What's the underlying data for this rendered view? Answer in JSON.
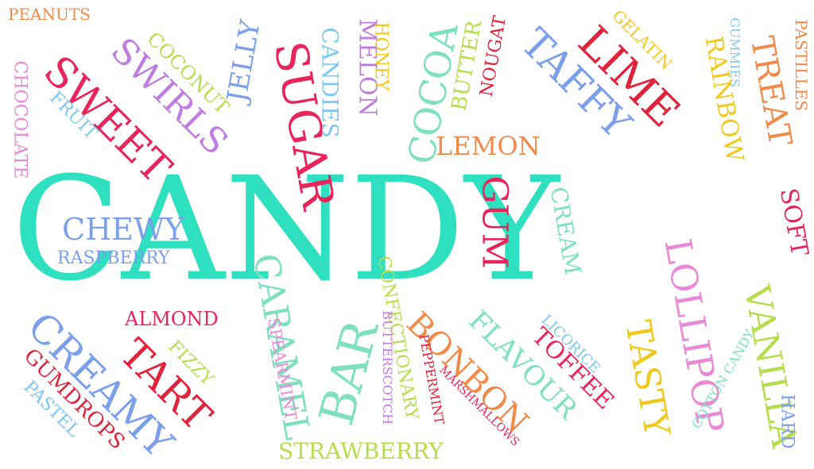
{
  "words": [
    {
      "text": "CANDY",
      "color": "#2ee0c0",
      "rotate": 0
    },
    {
      "text": "PEANUTS",
      "color": "#f08a4b",
      "rotate": 0
    },
    {
      "text": "CHOCOLATE",
      "color": "#e78ad6",
      "rotate": 90
    },
    {
      "text": "SWEET",
      "color": "#e8245c",
      "rotate": 45
    },
    {
      "text": "SWIRLS",
      "color": "#c07de0",
      "rotate": 45
    },
    {
      "text": "FRUIT",
      "color": "#7ec8ef",
      "rotate": 45
    },
    {
      "text": "COCONUT",
      "color": "#b6dd4d",
      "rotate": 45
    },
    {
      "text": "JELLY",
      "color": "#7b9fe8",
      "rotate": -80
    },
    {
      "text": "SUGAR",
      "color": "#e8245c",
      "rotate": 80
    },
    {
      "text": "CANDIES",
      "color": "#7ec8ef",
      "rotate": 90
    },
    {
      "text": "MELON",
      "color": "#c07de0",
      "rotate": 90
    },
    {
      "text": "HONEY",
      "color": "#f0c91e",
      "rotate": 90
    },
    {
      "text": "COCOA",
      "color": "#7fe0c0",
      "rotate": -80
    },
    {
      "text": "BUTTER",
      "color": "#b6dd4d",
      "rotate": -80
    },
    {
      "text": "NOUGAT",
      "color": "#e0223a",
      "rotate": -80
    },
    {
      "text": "TAFFY",
      "color": "#7b9fe8",
      "rotate": 45
    },
    {
      "text": "LIME",
      "color": "#e0223a",
      "rotate": 45
    },
    {
      "text": "GELATIN",
      "color": "#f0c91e",
      "rotate": 45
    },
    {
      "text": "RAINBOW",
      "color": "#f0c91e",
      "rotate": 80
    },
    {
      "text": "GUMMIES",
      "color": "#7ec8ef",
      "rotate": 90
    },
    {
      "text": "TREAT",
      "color": "#f08a4b",
      "rotate": 80
    },
    {
      "text": "PASTILLES",
      "color": "#f08a4b",
      "rotate": 90
    },
    {
      "text": "LEMON",
      "color": "#f08a4b",
      "rotate": 0
    },
    {
      "text": "GUM",
      "color": "#e8245c",
      "rotate": 90
    },
    {
      "text": "CREAM",
      "color": "#7fe0c0",
      "rotate": 80
    },
    {
      "text": "SOFT",
      "color": "#e8245c",
      "rotate": 80
    },
    {
      "text": "CHEWY",
      "color": "#7b9fe8",
      "rotate": 0
    },
    {
      "text": "RASPBERRY",
      "color": "#7b9fe8",
      "rotate": 0
    },
    {
      "text": "ALMOND",
      "color": "#e8245c",
      "rotate": 0
    },
    {
      "text": "LOLLIPOP",
      "color": "#e88ad6",
      "rotate": 80
    },
    {
      "text": "CARAMEL",
      "color": "#7fe0c0",
      "rotate": 80
    },
    {
      "text": "CONFECTIONARY",
      "color": "#b6dd4d",
      "rotate": 80
    },
    {
      "text": "BUTTERSCOTCH",
      "color": "#c07de0",
      "rotate": 90
    },
    {
      "text": "CREAMY",
      "color": "#7b9fe8",
      "rotate": 45
    },
    {
      "text": "TART",
      "color": "#e0223a",
      "rotate": 45
    },
    {
      "text": "FIZZY",
      "color": "#b6dd4d",
      "rotate": 45
    },
    {
      "text": "SPEARMINT",
      "color": "#e88ad6",
      "rotate": 80
    },
    {
      "text": "BAR",
      "color": "#7fe0c0",
      "rotate": -75
    },
    {
      "text": "BONBON",
      "color": "#f08a4b",
      "rotate": 45
    },
    {
      "text": "FLAVOUR",
      "color": "#7fe0c0",
      "rotate": 45
    },
    {
      "text": "PEPPERMINT",
      "color": "#e0223a",
      "rotate": 80
    },
    {
      "text": "MARSHMALLOWS",
      "color": "#e8245c",
      "rotate": 45
    },
    {
      "text": "LICORICE",
      "color": "#7ec8ef",
      "rotate": 45
    },
    {
      "text": "TOFFEE",
      "color": "#e8245c",
      "rotate": 45
    },
    {
      "text": "TASTY",
      "color": "#f0c91e",
      "rotate": 80
    },
    {
      "text": "VANILLA",
      "color": "#b6dd4d",
      "rotate": 80
    },
    {
      "text": "COTTON CANDY",
      "color": "#7fe0c0",
      "rotate": -60
    },
    {
      "text": "HARD",
      "color": "#7b9fe8",
      "rotate": 90
    },
    {
      "text": "GUMDROPS",
      "color": "#e0223a",
      "rotate": 45
    },
    {
      "text": "PASTEL",
      "color": "#7ec8ef",
      "rotate": 45
    },
    {
      "text": "STRAWBERRY",
      "color": "#b6dd4d",
      "rotate": 0
    }
  ]
}
